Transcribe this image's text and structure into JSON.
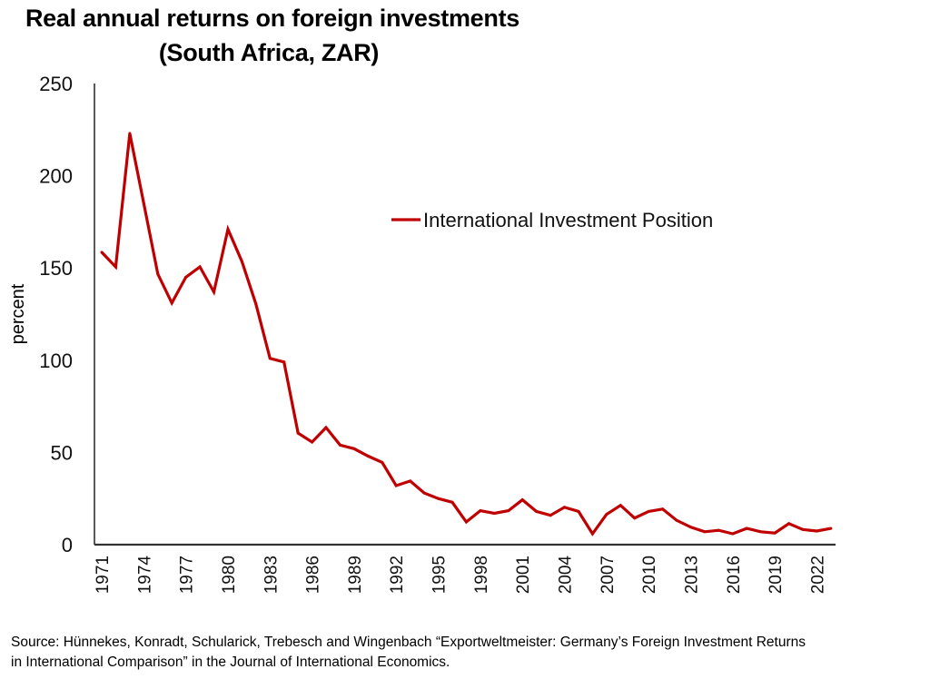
{
  "chart_data": {
    "type": "line",
    "title": "Real annual returns on foreign investments",
    "subtitle": "(South Africa, ZAR)",
    "xlabel": "",
    "ylabel": "percent",
    "ylim": [
      0,
      250
    ],
    "yticks": [
      "0",
      "50",
      "100",
      "150",
      "200",
      "250"
    ],
    "xticks": [
      "1971",
      "1974",
      "1977",
      "1980",
      "1983",
      "1986",
      "1989",
      "1992",
      "1995",
      "1998",
      "2001",
      "2004",
      "2007",
      "2010",
      "2013",
      "2016",
      "2019",
      "2022"
    ],
    "grid": false,
    "legend_position": "upper-center",
    "x": [
      1971,
      1972,
      1973,
      1974,
      1975,
      1976,
      1977,
      1978,
      1979,
      1980,
      1981,
      1982,
      1983,
      1984,
      1985,
      1986,
      1987,
      1988,
      1989,
      1990,
      1991,
      1992,
      1993,
      1994,
      1995,
      1996,
      1997,
      1998,
      1999,
      2000,
      2001,
      2002,
      2003,
      2004,
      2005,
      2006,
      2007,
      2008,
      2009,
      2010,
      2011,
      2012,
      2013,
      2014,
      2015,
      2016,
      2017,
      2018,
      2019,
      2020,
      2021,
      2022,
      2023
    ],
    "series": [
      {
        "name": "International Investment Position",
        "color": "#c00000",
        "values": [
          158.5,
          150.6,
          223,
          185,
          146.7,
          131,
          145,
          150.6,
          137,
          171,
          153.5,
          130.4,
          101,
          99,
          60.5,
          55.6,
          63.5,
          54,
          52,
          48,
          44.6,
          32,
          34.5,
          28,
          25,
          23,
          12.3,
          18.4,
          17,
          18.4,
          24.3,
          18,
          15.9,
          20.3,
          18,
          5.9,
          16.4,
          21.3,
          14.4,
          18,
          19.3,
          13.2,
          9.5,
          7,
          7.8,
          5.9,
          8.8,
          7,
          6.3,
          11.4,
          8.2,
          7.4,
          8.8
        ]
      }
    ]
  },
  "source_line1": "Source: Hünnekes, Konradt, Schularick, Trebesch and Wingenbach “Exportweltmeister: Germany’s Foreign Investment Returns",
  "source_line2": "in International Comparison” in the Journal of International Economics."
}
